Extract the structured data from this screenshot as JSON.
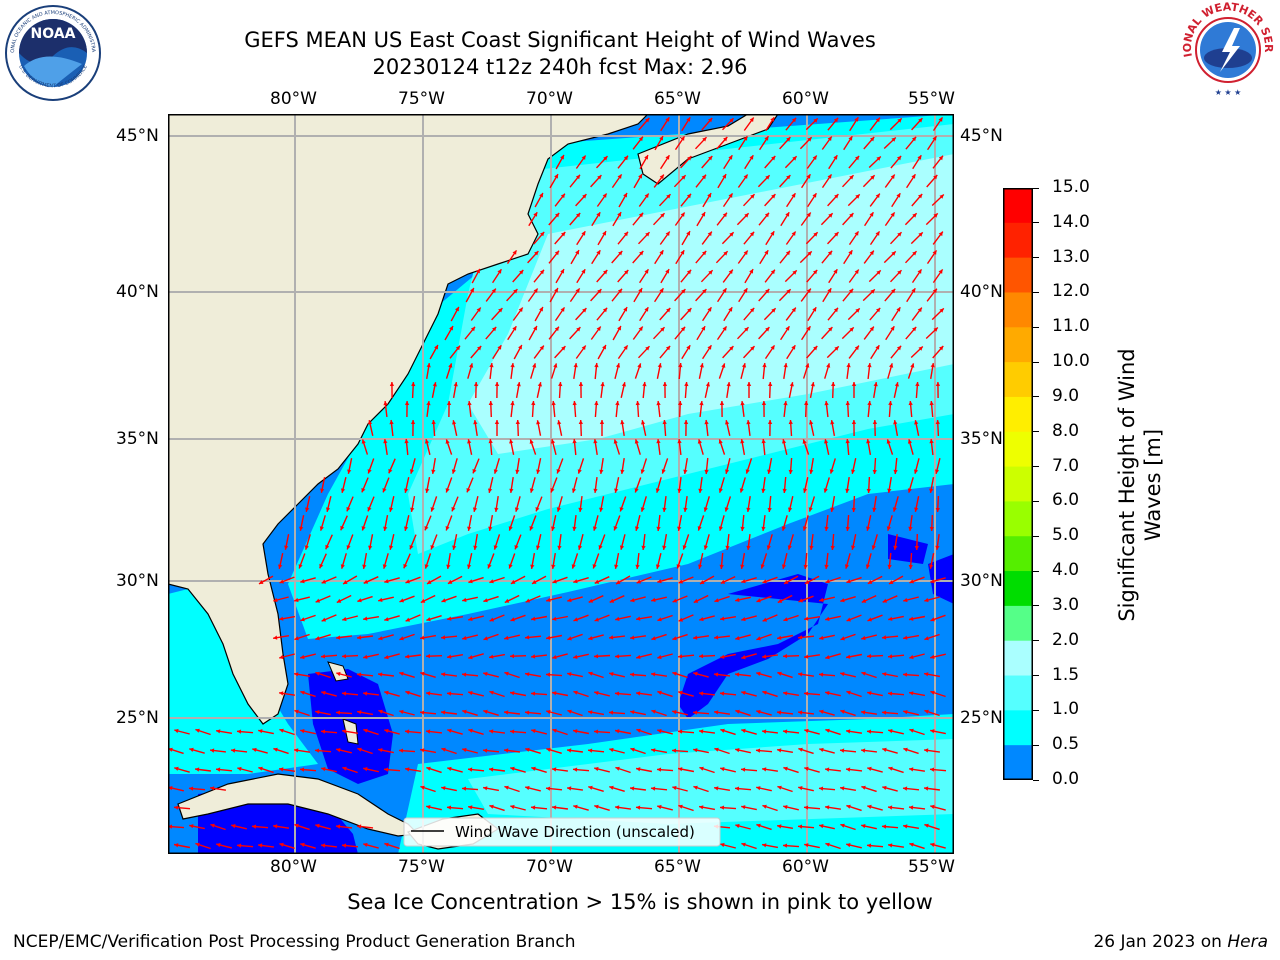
{
  "title": {
    "line1": "GEFS MEAN US East Coast Significant Height of Wind Waves",
    "line2": "20230124 t12z 240h fcst   Max: 2.96"
  },
  "logos": {
    "left": {
      "text": "NOAA",
      "ring_top": "NATIONAL OCEANIC AND ATMOSPHERIC ADMINISTRATION",
      "ring_bottom": "U.S. DEPARTMENT OF COMMERCE"
    },
    "right": {
      "ring": "NATIONAL WEATHER SERVICE"
    }
  },
  "map": {
    "lon_labels": [
      "80°W",
      "75°W",
      "70°W",
      "65°W",
      "60°W",
      "55°W"
    ],
    "lat_labels": [
      "45°N",
      "40°N",
      "35°N",
      "30°N",
      "25°N"
    ],
    "legend_label": "Wind Wave Direction (unscaled)",
    "colors": {
      "land": "#efedd9",
      "coast": "#000000",
      "grid": "#b0b0b0",
      "arrow": "#ff0000"
    }
  },
  "colorbar": {
    "title_line1": "Significant Height of Wind",
    "title_line2": "Waves [m]",
    "ticks": [
      "15.0",
      "14.0",
      "13.0",
      "12.0",
      "11.0",
      "10.0",
      "9.0",
      "8.0",
      "7.0",
      "6.0",
      "5.0",
      "4.0",
      "3.0",
      "2.0",
      "1.5",
      "1.0",
      "0.5",
      "0.0"
    ],
    "bin_colors_top_to_bottom": [
      "#ff0000",
      "#ff2200",
      "#ff5500",
      "#ff8800",
      "#ffaa00",
      "#ffcc00",
      "#ffee00",
      "#eeff00",
      "#ccff00",
      "#99ff00",
      "#55ee00",
      "#00dd00",
      "#55ff88",
      "#aaffff",
      "#55ffff",
      "#00ffff",
      "#0088ff",
      "#0000ff"
    ]
  },
  "chart_data": {
    "type": "heatmap",
    "variable": "Significant Height of Wind Waves [m]",
    "max": 2.96,
    "x_range_lon": [
      -85,
      -54
    ],
    "y_range_lat": [
      20.5,
      46
    ],
    "levels": [
      0.0,
      0.5,
      1.0,
      1.5,
      2.0,
      3.0,
      4.0,
      5.0,
      6.0,
      7.0,
      8.0,
      9.0,
      10.0,
      11.0,
      12.0,
      13.0,
      14.0,
      15.0
    ]
  },
  "notes": {
    "sea_ice": "Sea Ice Concentration > 15% is shown in pink to yellow",
    "footer_left": "NCEP/EMC/Verification Post Processing Product Generation Branch",
    "footer_right_prefix": "26 Jan 2023 on ",
    "footer_right_machine": "Hera"
  }
}
